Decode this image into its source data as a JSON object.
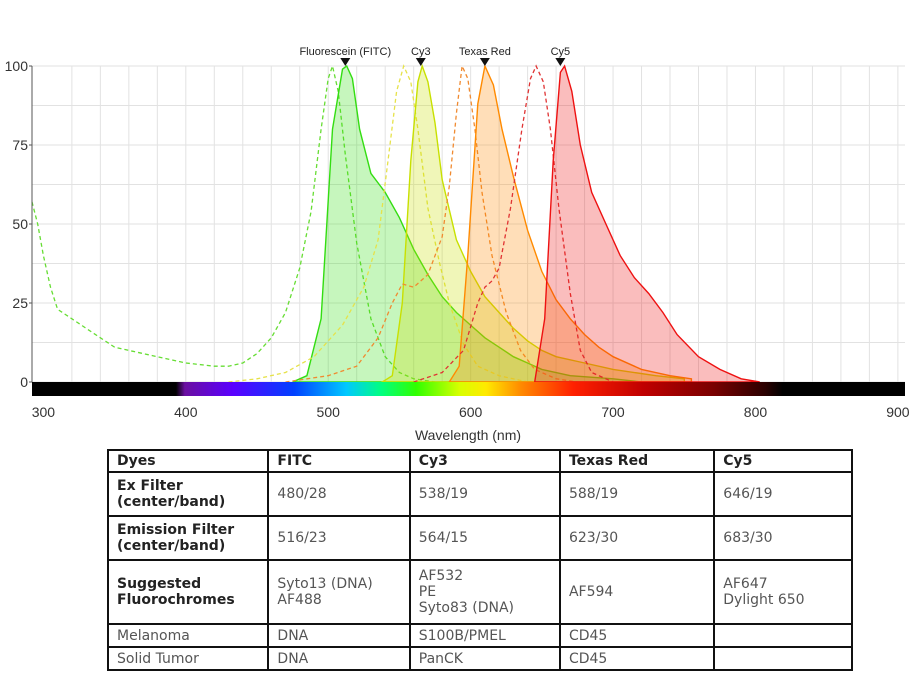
{
  "chart_data": {
    "type": "line",
    "title": "",
    "xlabel": "Wavelength (nm)",
    "ylabel": "",
    "xlim": [
      292,
      905
    ],
    "ylim": [
      0,
      100
    ],
    "x_ticks": [
      300,
      400,
      500,
      600,
      700,
      800,
      900
    ],
    "y_ticks": [
      0,
      25,
      50,
      75,
      100
    ],
    "grid": true,
    "peak_markers": [
      {
        "label": "Fluorescein (FITC)",
        "x": 512
      },
      {
        "label": "Cy3",
        "x": 565
      },
      {
        "label": "Texas Red",
        "x": 610
      },
      {
        "label": "Cy5",
        "x": 663
      }
    ],
    "series": [
      {
        "dye": "FITC",
        "kind": "excitation",
        "color": "#66dd33",
        "points": [
          [
            292,
            57
          ],
          [
            296,
            50
          ],
          [
            300,
            40
          ],
          [
            305,
            30
          ],
          [
            310,
            23
          ],
          [
            320,
            20
          ],
          [
            330,
            17
          ],
          [
            340,
            14
          ],
          [
            350,
            11
          ],
          [
            360,
            10
          ],
          [
            380,
            8
          ],
          [
            400,
            6
          ],
          [
            420,
            5
          ],
          [
            430,
            5
          ],
          [
            440,
            6
          ],
          [
            450,
            9
          ],
          [
            460,
            14
          ],
          [
            470,
            22
          ],
          [
            480,
            36
          ],
          [
            488,
            54
          ],
          [
            495,
            80
          ],
          [
            500,
            96
          ],
          [
            503,
            100
          ],
          [
            507,
            92
          ],
          [
            512,
            72
          ],
          [
            520,
            44
          ],
          [
            530,
            20
          ],
          [
            540,
            8
          ],
          [
            550,
            3
          ],
          [
            560,
            1
          ],
          [
            575,
            0
          ]
        ]
      },
      {
        "dye": "FITC",
        "kind": "emission",
        "color": "#33dd11",
        "points": [
          [
            475,
            0
          ],
          [
            485,
            2
          ],
          [
            495,
            20
          ],
          [
            503,
            80
          ],
          [
            510,
            99
          ],
          [
            513,
            100
          ],
          [
            517,
            96
          ],
          [
            522,
            80
          ],
          [
            530,
            66
          ],
          [
            540,
            60
          ],
          [
            550,
            52
          ],
          [
            560,
            42
          ],
          [
            570,
            34
          ],
          [
            580,
            27
          ],
          [
            590,
            22
          ],
          [
            600,
            18
          ],
          [
            610,
            14
          ],
          [
            620,
            11
          ],
          [
            630,
            8
          ],
          [
            640,
            6
          ],
          [
            650,
            4
          ],
          [
            670,
            2
          ],
          [
            700,
            1
          ],
          [
            720,
            0
          ]
        ]
      },
      {
        "dye": "Cy3",
        "kind": "excitation",
        "color": "#e6e24a",
        "points": [
          [
            430,
            0
          ],
          [
            450,
            1
          ],
          [
            470,
            3
          ],
          [
            490,
            8
          ],
          [
            510,
            18
          ],
          [
            525,
            30
          ],
          [
            535,
            45
          ],
          [
            542,
            70
          ],
          [
            548,
            92
          ],
          [
            553,
            100
          ],
          [
            558,
            95
          ],
          [
            563,
            80
          ],
          [
            570,
            55
          ],
          [
            578,
            38
          ],
          [
            585,
            25
          ],
          [
            595,
            12
          ],
          [
            605,
            5
          ],
          [
            620,
            2
          ],
          [
            640,
            0
          ]
        ]
      },
      {
        "dye": "Cy3",
        "kind": "emission",
        "color": "#c8e000",
        "points": [
          [
            538,
            0
          ],
          [
            545,
            2
          ],
          [
            552,
            25
          ],
          [
            558,
            70
          ],
          [
            563,
            95
          ],
          [
            566,
            100
          ],
          [
            570,
            95
          ],
          [
            575,
            82
          ],
          [
            580,
            64
          ],
          [
            590,
            45
          ],
          [
            600,
            35
          ],
          [
            610,
            27
          ],
          [
            620,
            22
          ],
          [
            630,
            17
          ],
          [
            640,
            13
          ],
          [
            650,
            10
          ],
          [
            660,
            8
          ],
          [
            680,
            6
          ],
          [
            700,
            4
          ],
          [
            730,
            2
          ],
          [
            750,
            1
          ]
        ]
      },
      {
        "dye": "Texas Red",
        "kind": "excitation",
        "color": "#f08a30",
        "points": [
          [
            470,
            0
          ],
          [
            500,
            2
          ],
          [
            520,
            5
          ],
          [
            535,
            14
          ],
          [
            545,
            25
          ],
          [
            552,
            31
          ],
          [
            560,
            30
          ],
          [
            570,
            34
          ],
          [
            580,
            46
          ],
          [
            585,
            62
          ],
          [
            590,
            85
          ],
          [
            594,
            100
          ],
          [
            598,
            96
          ],
          [
            603,
            80
          ],
          [
            608,
            60
          ],
          [
            615,
            40
          ],
          [
            625,
            22
          ],
          [
            635,
            10
          ],
          [
            645,
            4
          ],
          [
            660,
            1
          ],
          [
            675,
            0
          ]
        ]
      },
      {
        "dye": "Texas Red",
        "kind": "emission",
        "color": "#ff8a00",
        "points": [
          [
            585,
            0
          ],
          [
            592,
            5
          ],
          [
            598,
            40
          ],
          [
            605,
            88
          ],
          [
            610,
            100
          ],
          [
            616,
            94
          ],
          [
            622,
            80
          ],
          [
            630,
            65
          ],
          [
            640,
            48
          ],
          [
            650,
            35
          ],
          [
            660,
            26
          ],
          [
            670,
            20
          ],
          [
            680,
            15
          ],
          [
            690,
            11
          ],
          [
            700,
            8
          ],
          [
            720,
            4
          ],
          [
            740,
            2
          ],
          [
            755,
            1
          ]
        ]
      },
      {
        "dye": "Cy5",
        "kind": "excitation",
        "color": "#e03333",
        "points": [
          [
            560,
            0
          ],
          [
            580,
            3
          ],
          [
            595,
            10
          ],
          [
            605,
            25
          ],
          [
            610,
            30
          ],
          [
            615,
            32
          ],
          [
            620,
            36
          ],
          [
            628,
            55
          ],
          [
            636,
            80
          ],
          [
            642,
            96
          ],
          [
            646,
            100
          ],
          [
            651,
            95
          ],
          [
            656,
            80
          ],
          [
            662,
            55
          ],
          [
            670,
            28
          ],
          [
            677,
            10
          ],
          [
            685,
            3
          ],
          [
            700,
            0
          ]
        ]
      },
      {
        "dye": "Cy5",
        "kind": "emission",
        "color": "#ee1111",
        "points": [
          [
            645,
            0
          ],
          [
            652,
            20
          ],
          [
            658,
            70
          ],
          [
            663,
            98
          ],
          [
            666,
            100
          ],
          [
            671,
            92
          ],
          [
            677,
            75
          ],
          [
            685,
            60
          ],
          [
            695,
            50
          ],
          [
            705,
            40
          ],
          [
            715,
            33
          ],
          [
            725,
            28
          ],
          [
            735,
            22
          ],
          [
            745,
            15
          ],
          [
            760,
            8
          ],
          [
            775,
            4
          ],
          [
            790,
            1
          ],
          [
            803,
            0
          ]
        ]
      }
    ]
  },
  "table": {
    "header": [
      "Dyes",
      "FITC",
      "Cy3",
      "Texas Red",
      "Cy5"
    ],
    "rows": [
      {
        "label": [
          "Ex Filter",
          "(center/band)"
        ],
        "cells": [
          [
            "480/28"
          ],
          [
            "538/19"
          ],
          [
            "588/19"
          ],
          [
            "646/19"
          ]
        ]
      },
      {
        "label": [
          "Emission Filter",
          "(center/band)"
        ],
        "cells": [
          [
            "516/23"
          ],
          [
            "564/15"
          ],
          [
            "623/30"
          ],
          [
            "683/30"
          ]
        ]
      },
      {
        "label": [
          "Suggested",
          "Fluorochromes"
        ],
        "cells": [
          [
            "Syto13 (DNA)",
            "AF488"
          ],
          [
            "AF532",
            "PE",
            "Syto83 (DNA)"
          ],
          [
            "AF594"
          ],
          [
            "AF647",
            "Dylight 650"
          ]
        ]
      },
      {
        "label": [
          "Melanoma"
        ],
        "cells": [
          [
            "DNA"
          ],
          [
            "S100B/PMEL"
          ],
          [
            "CD45"
          ],
          [
            ""
          ]
        ]
      },
      {
        "label": [
          "Solid Tumor"
        ],
        "cells": [
          [
            "DNA"
          ],
          [
            "PanCK"
          ],
          [
            "CD45"
          ],
          [
            ""
          ]
        ]
      }
    ]
  }
}
